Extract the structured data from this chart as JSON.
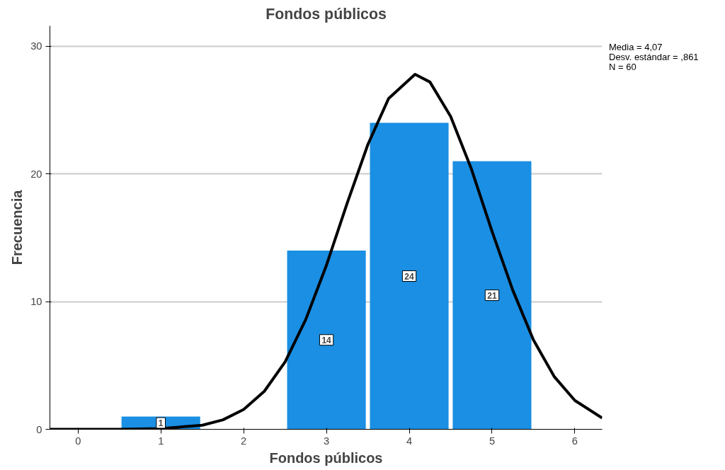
{
  "chart_data": {
    "type": "histogram",
    "title": "Fondos públicos",
    "xlabel": "Fondos públicos",
    "ylabel": "Frecuencia",
    "bins": [
      0.5,
      1.5,
      2.5,
      3.5,
      4.5,
      5.5
    ],
    "values": [
      1,
      0,
      14,
      24,
      21
    ],
    "color": "#1a8fe3",
    "value_labels": [
      "1",
      null,
      "14",
      "24",
      "21"
    ],
    "series": [
      {
        "type": "line",
        "color": "#000000",
        "x": [
          -0.34,
          0,
          0.5,
          1,
          1.5,
          1.75,
          2,
          2.25,
          2.5,
          2.75,
          3,
          3.25,
          3.5,
          3.75,
          4.07,
          4.25,
          4.5,
          4.75,
          5,
          5.25,
          5.5,
          5.75,
          6,
          6.33
        ],
        "values": [
          0,
          0,
          0,
          0.05,
          0.32,
          0.74,
          1.55,
          2.98,
          5.27,
          8.6,
          12.85,
          17.7,
          22.3,
          25.9,
          27.8,
          27.2,
          24.5,
          20.4,
          15.5,
          10.9,
          7.0,
          4.14,
          2.26,
          0.89
        ]
      }
    ],
    "annotations": [
      "Media = 4,07",
      "Desv. estándar = ,861",
      "N = 60"
    ],
    "xlim": [
      -0.34,
      6.33
    ],
    "ylim": [
      0,
      31.6
    ],
    "xticks": [
      0,
      1,
      2,
      3,
      4,
      5,
      6
    ],
    "yticks": [
      0,
      10,
      20,
      30
    ],
    "grid": "y"
  }
}
